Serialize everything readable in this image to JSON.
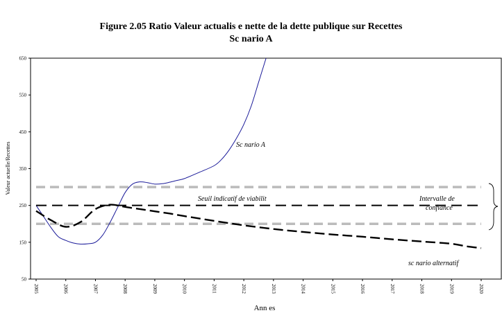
{
  "title": "Figure 2.05 Ratio Valeur actualis  e nette de la dette publique sur Recettes",
  "subtitle": "Sc  nario A",
  "chart_data": {
    "type": "line",
    "xlabel": "Ann  es",
    "ylabel": "Valeur actuelle/Recettes",
    "ylim": [
      50,
      650
    ],
    "yticks": [
      50,
      150,
      250,
      350,
      450,
      550,
      650
    ],
    "categories": [
      "2005",
      "2006",
      "2007",
      "2008",
      "2009",
      "2010",
      "2011",
      "2012",
      "2013",
      "2014",
      "2015",
      "2016",
      "2017",
      "2018",
      "2019",
      "2020"
    ],
    "series": [
      {
        "name": "Sc  nario A",
        "style": "thin-solid",
        "color": "#1a1a99",
        "x": [
          2005,
          2005.25,
          2005.5,
          2005.75,
          2006,
          2006.25,
          2006.5,
          2006.75,
          2007,
          2007.25,
          2007.5,
          2007.75,
          2008,
          2008.25,
          2008.5,
          2008.75,
          2009,
          2009.25,
          2009.5,
          2009.75,
          2010,
          2010.5,
          2011,
          2011.25,
          2011.5,
          2011.75,
          2012,
          2012.25,
          2012.5,
          2012.75
        ],
        "y": [
          250,
          220,
          190,
          165,
          155,
          148,
          145,
          146,
          150,
          170,
          205,
          245,
          285,
          308,
          314,
          312,
          308,
          309,
          313,
          318,
          323,
          340,
          358,
          375,
          400,
          432,
          470,
          520,
          585,
          650
        ]
      },
      {
        "name": "sc  nario alternatif",
        "style": "dashed-thick",
        "color": "#000000",
        "x": [
          2005,
          2005.5,
          2006,
          2006.5,
          2007,
          2007.5,
          2008,
          2008.5,
          2009,
          2009.5,
          2010,
          2011,
          2012,
          2013,
          2014,
          2015,
          2016,
          2017,
          2018,
          2019,
          2019.5,
          2020
        ],
        "y": [
          235,
          210,
          192,
          205,
          240,
          252,
          246,
          240,
          234,
          228,
          221,
          208,
          196,
          186,
          178,
          171,
          165,
          158,
          152,
          146,
          139,
          134
        ]
      },
      {
        "name": "Seuil indicatif de viabilit",
        "style": "dashed",
        "color": "#000000",
        "x": [
          2005,
          2020
        ],
        "y": [
          250,
          250
        ]
      },
      {
        "name": "Intervalle de confiance (haut)",
        "style": "dashed-gray",
        "color": "#bbbbbb",
        "x": [
          2005,
          2020
        ],
        "y": [
          300,
          300
        ]
      },
      {
        "name": "Intervalle de confiance (bas)",
        "style": "dashed-gray",
        "color": "#bbbbbb",
        "x": [
          2005,
          2020
        ],
        "y": [
          200,
          200
        ]
      }
    ],
    "annotations": {
      "scenario_a": "Sc  nario A",
      "seuil": "Seuil indicatif de viabilit",
      "intervalle_1": "Intervalle de",
      "intervalle_2": "confiance",
      "alternatif": "sc  nario alternatif"
    },
    "grid": false,
    "legend": "none"
  }
}
